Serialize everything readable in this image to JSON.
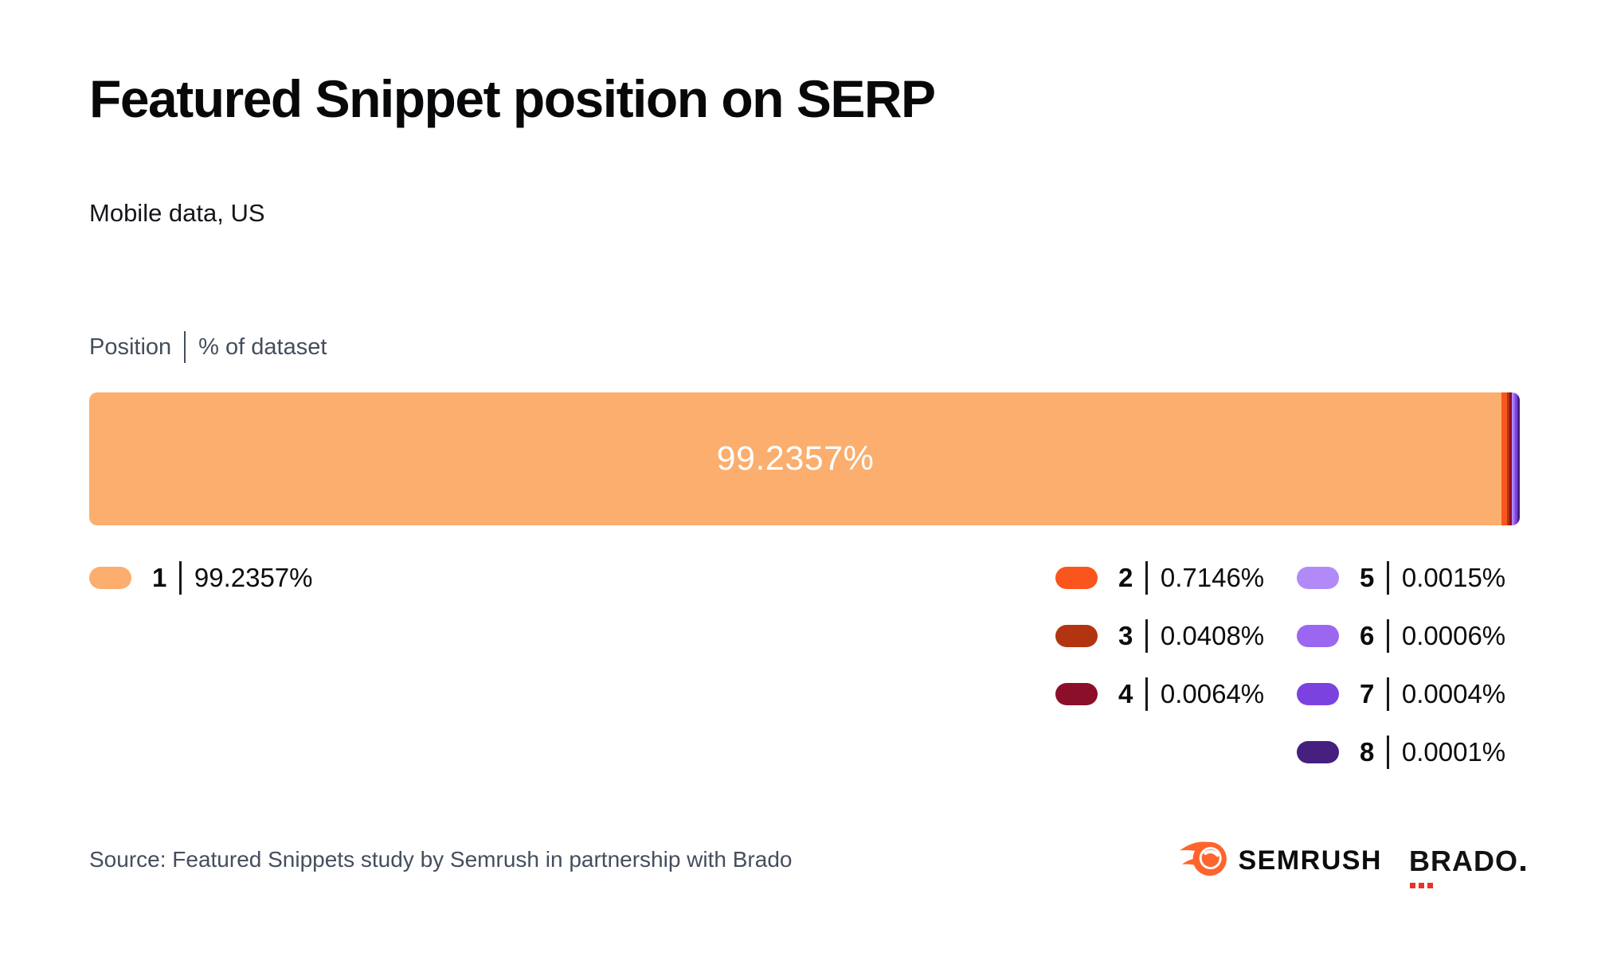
{
  "page": {
    "title": "Featured Snippet position on SERP",
    "subtitle": "Mobile data, US",
    "column_header_left": "Position",
    "column_header_right": "% of dataset",
    "source": "Source: Featured Snippets study by Semrush in partnership with Brado"
  },
  "chart_data": {
    "type": "bar",
    "orientation": "horizontal-stacked",
    "title": "Featured Snippet position on SERP",
    "subtitle": "Mobile data, US",
    "xlabel": "% of dataset",
    "ylabel": "Position",
    "xlim": [
      0,
      100
    ],
    "grid": false,
    "legend_position": "below",
    "categories": [
      "1",
      "2",
      "3",
      "4",
      "5",
      "6",
      "7",
      "8"
    ],
    "values": [
      99.2357,
      0.7146,
      0.0408,
      0.0064,
      0.0015,
      0.0006,
      0.0004,
      0.0001
    ],
    "labels": [
      "99.2357%",
      "0.7146%",
      "0.0408%",
      "0.0064%",
      "0.0015%",
      "0.0006%",
      "0.0004%",
      "0.0001%"
    ],
    "colors": [
      "#FBAE6D",
      "#FA551D",
      "#B23410",
      "#8C0F2A",
      "#B28AF8",
      "#9C67F0",
      "#7B42E0",
      "#45207F"
    ],
    "bar_inner_label": "99.2357%"
  },
  "branding": {
    "semrush_word": "SEMRUSH",
    "semrush_icon": "semrush-comet-icon",
    "semrush_orange": "#FF642D",
    "brado_word": "BRADO",
    "brado_suffix_dot": ".",
    "brado_accent_red": "#E8322A"
  }
}
